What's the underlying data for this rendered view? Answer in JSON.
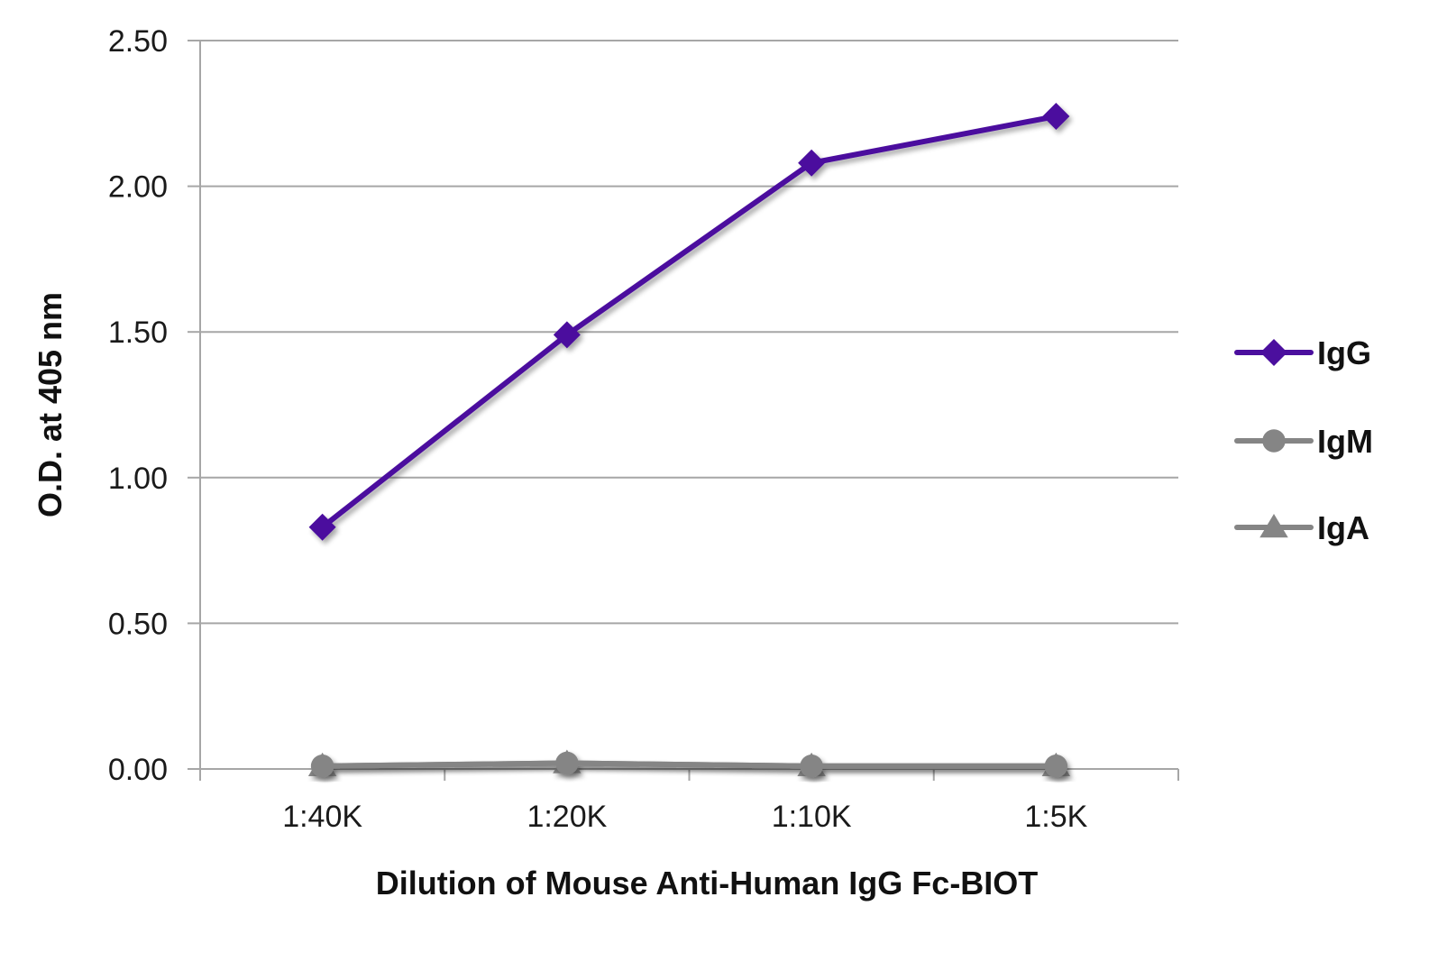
{
  "chart_data": {
    "type": "line",
    "title": "",
    "xlabel": "Dilution of Mouse Anti-Human IgG Fc-BIOT",
    "ylabel": "O.D. at 405 nm",
    "categories": [
      "1:40K",
      "1:20K",
      "1:10K",
      "1:5K"
    ],
    "ylim": [
      0,
      2.5
    ],
    "yticks": [
      "0.00",
      "0.50",
      "1.00",
      "1.50",
      "2.00",
      "2.50"
    ],
    "ytick_values": [
      0,
      0.5,
      1.0,
      1.5,
      2.0,
      2.5
    ],
    "grid": true,
    "legend_position": "right",
    "series": [
      {
        "name": "IgG",
        "values": [
          0.83,
          1.49,
          2.08,
          2.24
        ],
        "color": "#4b0f9e",
        "marker": "diamond"
      },
      {
        "name": "IgM",
        "values": [
          0.01,
          0.02,
          0.01,
          0.01
        ],
        "color": "#858585",
        "marker": "circle"
      },
      {
        "name": "IgA",
        "values": [
          0.01,
          0.02,
          0.01,
          0.01
        ],
        "color": "#858585",
        "marker": "triangle"
      }
    ]
  }
}
